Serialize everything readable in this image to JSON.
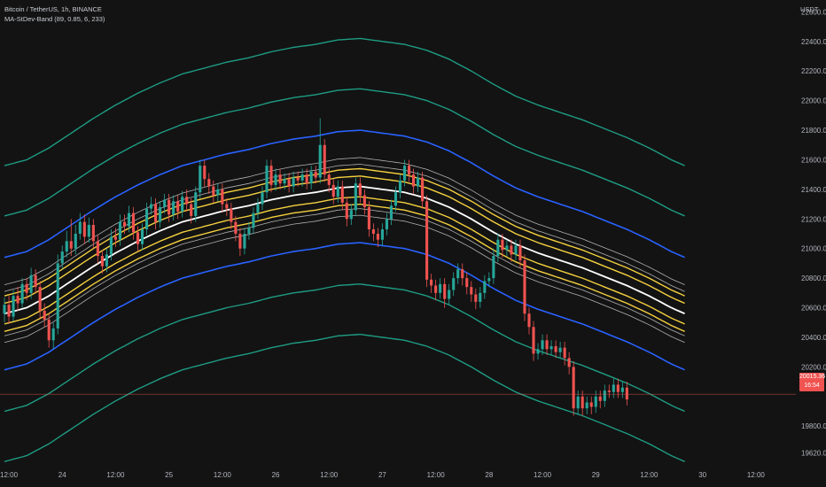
{
  "header": {
    "symbol": "Bitcoin / TetherUS, 1h, BINANCE",
    "indicator": "MA-StDev-Band (89, 0.85, 6, 233)",
    "currency": "USDT"
  },
  "current_price": {
    "value": "20015.36",
    "countdown": "16:54"
  },
  "colors": {
    "background": "#131313",
    "candle_up": "#26a69a",
    "candle_down": "#ef5350",
    "band_outer": "#1e9c84",
    "band_blue": "#2962ff",
    "band_yellow": "#f4d03f",
    "band_inner": "#b0b0b0",
    "ma_center": "#ffffff",
    "price_line": "#ef5350"
  },
  "chart_data": {
    "type": "candlestick",
    "ylim": [
      19520,
      22680
    ],
    "y_ticks": [
      22600,
      22400,
      22200,
      22000,
      21800,
      21600,
      21400,
      21200,
      21000,
      20800,
      20600,
      20400,
      20200,
      20000,
      19800,
      19620
    ],
    "y_tick_labels": [
      "22600.00",
      "22400.00",
      "22200.00",
      "22000.00",
      "21800.00",
      "21600.00",
      "21400.00",
      "21200.00",
      "21000.00",
      "20800.00",
      "20600.00",
      "20400.00",
      "20200.00",
      "",
      "19800.00",
      "19620.00"
    ],
    "x_ticks": [
      {
        "pos": 1,
        "label": "12:00"
      },
      {
        "pos": 13,
        "label": "24"
      },
      {
        "pos": 25,
        "label": "12:00"
      },
      {
        "pos": 37,
        "label": "25"
      },
      {
        "pos": 49,
        "label": "12:00"
      },
      {
        "pos": 61,
        "label": "26"
      },
      {
        "pos": 73,
        "label": "12:00"
      },
      {
        "pos": 85,
        "label": "27"
      },
      {
        "pos": 97,
        "label": "12:00"
      },
      {
        "pos": 109,
        "label": "28"
      },
      {
        "pos": 121,
        "label": "12:00"
      },
      {
        "pos": 133,
        "label": "29"
      },
      {
        "pos": 145,
        "label": "12:00"
      },
      {
        "pos": 157,
        "label": "30"
      },
      {
        "pos": 169,
        "label": "12:00"
      }
    ],
    "x_range": [
      -1,
      178
    ],
    "center_ma": [
      [
        0,
        20560
      ],
      [
        5,
        20600
      ],
      [
        10,
        20680
      ],
      [
        15,
        20780
      ],
      [
        20,
        20880
      ],
      [
        25,
        20970
      ],
      [
        30,
        21050
      ],
      [
        35,
        21120
      ],
      [
        40,
        21180
      ],
      [
        45,
        21220
      ],
      [
        50,
        21260
      ],
      [
        55,
        21290
      ],
      [
        60,
        21330
      ],
      [
        65,
        21360
      ],
      [
        70,
        21380
      ],
      [
        75,
        21410
      ],
      [
        80,
        21420
      ],
      [
        85,
        21400
      ],
      [
        90,
        21380
      ],
      [
        95,
        21340
      ],
      [
        100,
        21280
      ],
      [
        105,
        21200
      ],
      [
        110,
        21110
      ],
      [
        115,
        21030
      ],
      [
        120,
        20970
      ],
      [
        125,
        20920
      ],
      [
        130,
        20870
      ],
      [
        135,
        20810
      ],
      [
        140,
        20750
      ],
      [
        145,
        20680
      ],
      [
        150,
        20600
      ],
      [
        153,
        20560
      ]
    ],
    "band_offsets": {
      "inner": [
        -195,
        -150,
        150,
        195
      ],
      "yellow": [
        -120,
        -70,
        70,
        120
      ],
      "blue": [
        -380,
        380
      ],
      "outer": [
        -1000,
        -660,
        660,
        1000
      ]
    },
    "candles": [
      [
        20560,
        20620,
        20500,
        20670
      ],
      [
        20620,
        20540,
        20490,
        20680
      ],
      [
        20540,
        20680,
        20510,
        20720
      ],
      [
        20680,
        20630,
        20580,
        20740
      ],
      [
        20630,
        20760,
        20600,
        20800
      ],
      [
        20760,
        20700,
        20650,
        20800
      ],
      [
        20700,
        20820,
        20660,
        20870
      ],
      [
        20820,
        20740,
        20700,
        20860
      ],
      [
        20740,
        20580,
        20530,
        20780
      ],
      [
        20580,
        20520,
        20470,
        20630
      ],
      [
        20520,
        20380,
        20330,
        20560
      ],
      [
        20380,
        20460,
        20320,
        20500
      ],
      [
        20460,
        20900,
        20420,
        20960
      ],
      [
        20900,
        20980,
        20860,
        21020
      ],
      [
        20980,
        21050,
        20940,
        21120
      ],
      [
        21050,
        21000,
        20950,
        21200
      ],
      [
        21000,
        21100,
        20960,
        21160
      ],
      [
        21100,
        21180,
        21060,
        21240
      ],
      [
        21180,
        21080,
        21030,
        21230
      ],
      [
        21080,
        21160,
        21040,
        21210
      ],
      [
        21160,
        21050,
        21000,
        21200
      ],
      [
        21050,
        20950,
        20900,
        21090
      ],
      [
        20950,
        20880,
        20830,
        20990
      ],
      [
        20880,
        20960,
        20840,
        21000
      ],
      [
        20960,
        21080,
        20920,
        21130
      ],
      [
        21080,
        21060,
        21010,
        21140
      ],
      [
        21060,
        21180,
        21020,
        21230
      ],
      [
        21180,
        21150,
        21100,
        21230
      ],
      [
        21150,
        21240,
        21110,
        21290
      ],
      [
        21240,
        21110,
        21060,
        21280
      ],
      [
        21110,
        21030,
        20980,
        21150
      ],
      [
        21030,
        21130,
        20990,
        21170
      ],
      [
        21130,
        21270,
        21090,
        21310
      ],
      [
        21270,
        21300,
        21230,
        21350
      ],
      [
        21300,
        21180,
        21130,
        21340
      ],
      [
        21180,
        21280,
        21140,
        21320
      ],
      [
        21280,
        21330,
        21240,
        21370
      ],
      [
        21330,
        21230,
        21180,
        21370
      ],
      [
        21230,
        21320,
        21190,
        21360
      ],
      [
        21320,
        21250,
        21200,
        21360
      ],
      [
        21250,
        21350,
        21210,
        21390
      ],
      [
        21350,
        21300,
        21250,
        21400
      ],
      [
        21300,
        21220,
        21170,
        21340
      ],
      [
        21220,
        21380,
        21180,
        21420
      ],
      [
        21380,
        21560,
        21340,
        21600
      ],
      [
        21560,
        21470,
        21420,
        21600
      ],
      [
        21470,
        21420,
        21370,
        21510
      ],
      [
        21420,
        21360,
        21310,
        21460
      ],
      [
        21360,
        21400,
        21320,
        21440
      ],
      [
        21400,
        21300,
        21250,
        21440
      ],
      [
        21300,
        21270,
        21220,
        21340
      ],
      [
        21270,
        21180,
        21130,
        21310
      ],
      [
        21180,
        21100,
        21050,
        21220
      ],
      [
        21100,
        21000,
        20950,
        21140
      ],
      [
        21000,
        21100,
        20960,
        21140
      ],
      [
        21100,
        21140,
        21060,
        21180
      ],
      [
        21140,
        21240,
        21100,
        21280
      ],
      [
        21240,
        21300,
        21200,
        21340
      ],
      [
        21300,
        21380,
        21260,
        21420
      ],
      [
        21380,
        21560,
        21340,
        21600
      ],
      [
        21560,
        21430,
        21380,
        21600
      ],
      [
        21430,
        21500,
        21390,
        21540
      ],
      [
        21500,
        21440,
        21400,
        21540
      ],
      [
        21440,
        21470,
        21400,
        21510
      ],
      [
        21470,
        21420,
        21380,
        21510
      ],
      [
        21420,
        21480,
        21380,
        21520
      ],
      [
        21480,
        21460,
        21420,
        21520
      ],
      [
        21460,
        21500,
        21420,
        21540
      ],
      [
        21500,
        21440,
        21400,
        21540
      ],
      [
        21440,
        21520,
        21400,
        21560
      ],
      [
        21520,
        21480,
        21440,
        21560
      ],
      [
        21480,
        21700,
        21440,
        21880
      ],
      [
        21700,
        21500,
        21450,
        21740
      ],
      [
        21500,
        21430,
        21380,
        21540
      ],
      [
        21430,
        21350,
        21300,
        21470
      ],
      [
        21350,
        21420,
        21310,
        21460
      ],
      [
        21420,
        21310,
        21260,
        21460
      ],
      [
        21310,
        21200,
        21150,
        21350
      ],
      [
        21200,
        21260,
        21160,
        21300
      ],
      [
        21260,
        21440,
        21220,
        21480
      ],
      [
        21440,
        21360,
        21310,
        21480
      ],
      [
        21360,
        21280,
        21230,
        21400
      ],
      [
        21280,
        21130,
        21080,
        21320
      ],
      [
        21130,
        21100,
        21050,
        21170
      ],
      [
        21100,
        21060,
        21010,
        21140
      ],
      [
        21060,
        21130,
        21020,
        21170
      ],
      [
        21130,
        21200,
        21090,
        21240
      ],
      [
        21200,
        21290,
        21160,
        21330
      ],
      [
        21290,
        21380,
        21250,
        21420
      ],
      [
        21380,
        21460,
        21340,
        21500
      ],
      [
        21460,
        21560,
        21420,
        21600
      ],
      [
        21560,
        21500,
        21450,
        21600
      ],
      [
        21500,
        21420,
        21370,
        21540
      ],
      [
        21420,
        21480,
        21380,
        21520
      ],
      [
        21480,
        21320,
        21270,
        21520
      ],
      [
        21320,
        20790,
        20740,
        21360
      ],
      [
        20790,
        20750,
        20700,
        20830
      ],
      [
        20750,
        20700,
        20650,
        20790
      ],
      [
        20700,
        20760,
        20660,
        20800
      ],
      [
        20760,
        20660,
        20600,
        20800
      ],
      [
        20660,
        20720,
        20620,
        20760
      ],
      [
        20720,
        20800,
        20680,
        20840
      ],
      [
        20800,
        20860,
        20760,
        20900
      ],
      [
        20860,
        20800,
        20750,
        20900
      ],
      [
        20800,
        20740,
        20690,
        20840
      ],
      [
        20740,
        20690,
        20640,
        20780
      ],
      [
        20690,
        20640,
        20590,
        20730
      ],
      [
        20640,
        20700,
        20600,
        20740
      ],
      [
        20700,
        20780,
        20660,
        20820
      ],
      [
        20780,
        20800,
        20740,
        20840
      ],
      [
        20800,
        20950,
        20760,
        21000
      ],
      [
        20950,
        21060,
        20910,
        21100
      ],
      [
        21060,
        20990,
        20940,
        21100
      ],
      [
        20990,
        21020,
        20950,
        21060
      ],
      [
        21020,
        20960,
        20910,
        21060
      ],
      [
        20960,
        21020,
        20920,
        21060
      ],
      [
        21020,
        20920,
        20870,
        21060
      ],
      [
        20920,
        20560,
        20510,
        20960
      ],
      [
        20560,
        20470,
        20420,
        20600
      ],
      [
        20470,
        20290,
        20240,
        20510
      ],
      [
        20290,
        20320,
        20250,
        20360
      ],
      [
        20320,
        20380,
        20280,
        20420
      ],
      [
        20380,
        20320,
        20280,
        20420
      ],
      [
        20320,
        20340,
        20280,
        20380
      ],
      [
        20340,
        20300,
        20260,
        20380
      ],
      [
        20300,
        20330,
        20260,
        20370
      ],
      [
        20330,
        20260,
        20210,
        20370
      ],
      [
        20260,
        20200,
        20150,
        20300
      ],
      [
        20200,
        19920,
        19870,
        20240
      ],
      [
        19920,
        20000,
        19880,
        20040
      ],
      [
        20000,
        19920,
        19870,
        20040
      ],
      [
        19920,
        19960,
        19880,
        20000
      ],
      [
        19960,
        19930,
        19880,
        20000
      ],
      [
        19930,
        20000,
        19890,
        20040
      ],
      [
        20000,
        19970,
        19920,
        20040
      ],
      [
        19970,
        20040,
        19930,
        20080
      ],
      [
        20040,
        20030,
        19990,
        20080
      ],
      [
        20030,
        20080,
        19990,
        20120
      ],
      [
        20080,
        20030,
        19990,
        20120
      ],
      [
        20030,
        20060,
        19990,
        20100
      ],
      [
        20060,
        19980,
        19940,
        20100
      ]
    ]
  }
}
